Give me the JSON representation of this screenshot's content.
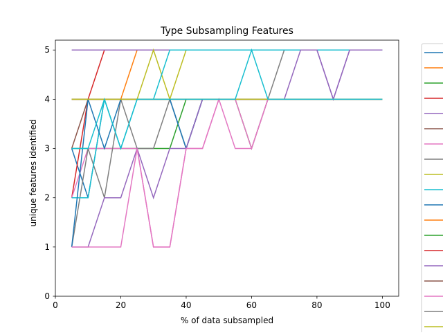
{
  "chart_data": {
    "type": "line",
    "title": "Type Subsampling Features",
    "xlabel": "% of data subsampled",
    "ylabel": "unique features identified",
    "xlim": [
      0,
      105
    ],
    "ylim": [
      0,
      5.2
    ],
    "xticks": [
      0,
      20,
      40,
      60,
      80,
      100
    ],
    "yticks": [
      0,
      1,
      2,
      3,
      4,
      5
    ],
    "grid": false,
    "legend": "right",
    "x": [
      5,
      10,
      15,
      20,
      25,
      30,
      35,
      40,
      45,
      50,
      55,
      60,
      65,
      70,
      75,
      80,
      85,
      90,
      95,
      100
    ],
    "series": [
      {
        "color": "#1f77b4",
        "values": [
          3,
          2,
          4,
          4,
          4,
          4,
          4,
          3,
          4,
          4,
          4,
          4,
          4,
          4,
          4,
          4,
          4,
          4,
          4,
          4
        ]
      },
      {
        "color": "#ff7f0e",
        "values": [
          4,
          4,
          4,
          4,
          5,
          5,
          5,
          5,
          5,
          5,
          5,
          5,
          5,
          5,
          5,
          5,
          5,
          5,
          5,
          5
        ]
      },
      {
        "color": "#2ca02c",
        "values": [
          3,
          3,
          3,
          3,
          3,
          3,
          3,
          4,
          4,
          4,
          4,
          3,
          4,
          4,
          4,
          4,
          4,
          4,
          4,
          4
        ]
      },
      {
        "color": "#d62728",
        "values": [
          2,
          4,
          5,
          5,
          5,
          5,
          5,
          5,
          5,
          5,
          5,
          5,
          5,
          5,
          5,
          5,
          5,
          5,
          5,
          5
        ]
      },
      {
        "color": "#9467bd",
        "values": [
          5,
          5,
          5,
          5,
          5,
          5,
          5,
          5,
          5,
          5,
          5,
          5,
          5,
          5,
          5,
          5,
          4,
          5,
          5,
          5
        ]
      },
      {
        "color": "#8c564b",
        "values": [
          3,
          4,
          4,
          4,
          4,
          4,
          4,
          4,
          4,
          4,
          4,
          4,
          4,
          4,
          4,
          4,
          4,
          4,
          4,
          4
        ]
      },
      {
        "color": "#e377c2",
        "values": [
          2,
          3,
          3,
          3,
          3,
          1,
          1,
          3,
          3,
          4,
          3,
          3,
          4,
          4,
          4,
          4,
          4,
          4,
          4,
          4
        ]
      },
      {
        "color": "#7f7f7f",
        "values": [
          1,
          3,
          2,
          4,
          3,
          3,
          4,
          3,
          4,
          4,
          4,
          4,
          4,
          5,
          5,
          5,
          5,
          5,
          5,
          5
        ]
      },
      {
        "color": "#bcbd22",
        "values": [
          4,
          4,
          4,
          4,
          4,
          5,
          4,
          5,
          5,
          5,
          5,
          5,
          5,
          5,
          5,
          5,
          5,
          5,
          5,
          5
        ]
      },
      {
        "color": "#17becf",
        "values": [
          2,
          2,
          4,
          3,
          4,
          4,
          5,
          5,
          5,
          5,
          5,
          5,
          5,
          5,
          5,
          5,
          5,
          5,
          5,
          5
        ]
      },
      {
        "color": "#1f77b4",
        "values": [
          1,
          4,
          3,
          4,
          4,
          4,
          4,
          3,
          4,
          4,
          4,
          4,
          4,
          4,
          4,
          4,
          4,
          4,
          4,
          4
        ]
      },
      {
        "color": "#ff7f0e",
        "values": [
          4,
          4,
          4,
          4,
          4,
          4,
          4,
          4,
          4,
          4,
          4,
          4,
          4,
          4,
          4,
          4,
          4,
          4,
          4,
          4
        ]
      },
      {
        "color": "#2ca02c",
        "values": [
          4,
          4,
          4,
          4,
          4,
          4,
          4,
          4,
          4,
          4,
          4,
          4,
          4,
          4,
          4,
          4,
          4,
          4,
          4,
          4
        ]
      },
      {
        "color": "#d62728",
        "values": [
          4,
          4,
          4,
          4,
          4,
          4,
          4,
          4,
          4,
          4,
          4,
          4,
          4,
          4,
          4,
          4,
          4,
          4,
          4,
          4
        ]
      },
      {
        "color": "#9467bd",
        "values": [
          1,
          1,
          2,
          2,
          3,
          2,
          3,
          3,
          4,
          4,
          4,
          4,
          4,
          4,
          5,
          5,
          4,
          5,
          5,
          5
        ]
      },
      {
        "color": "#8c564b",
        "values": [
          4,
          4,
          4,
          4,
          4,
          4,
          4,
          4,
          4,
          4,
          4,
          4,
          4,
          4,
          4,
          4,
          4,
          4,
          4,
          4
        ]
      },
      {
        "color": "#e377c2",
        "values": [
          1,
          1,
          1,
          1,
          3,
          1,
          1,
          3,
          3,
          4,
          4,
          3,
          4,
          4,
          4,
          4,
          4,
          4,
          4,
          4
        ]
      },
      {
        "color": "#7f7f7f",
        "values": [
          4,
          4,
          4,
          4,
          4,
          4,
          4,
          4,
          4,
          4,
          4,
          4,
          4,
          4,
          4,
          4,
          4,
          4,
          4,
          4
        ]
      },
      {
        "color": "#bcbd22",
        "values": [
          4,
          4,
          4,
          4,
          4,
          4,
          4,
          4,
          4,
          4,
          4,
          4,
          4,
          4,
          4,
          4,
          4,
          4,
          4,
          4
        ]
      },
      {
        "color": "#17becf",
        "values": [
          3,
          3,
          4,
          3,
          4,
          4,
          4,
          4,
          4,
          4,
          4,
          5,
          4,
          4,
          4,
          4,
          4,
          4,
          4,
          4
        ]
      }
    ]
  }
}
